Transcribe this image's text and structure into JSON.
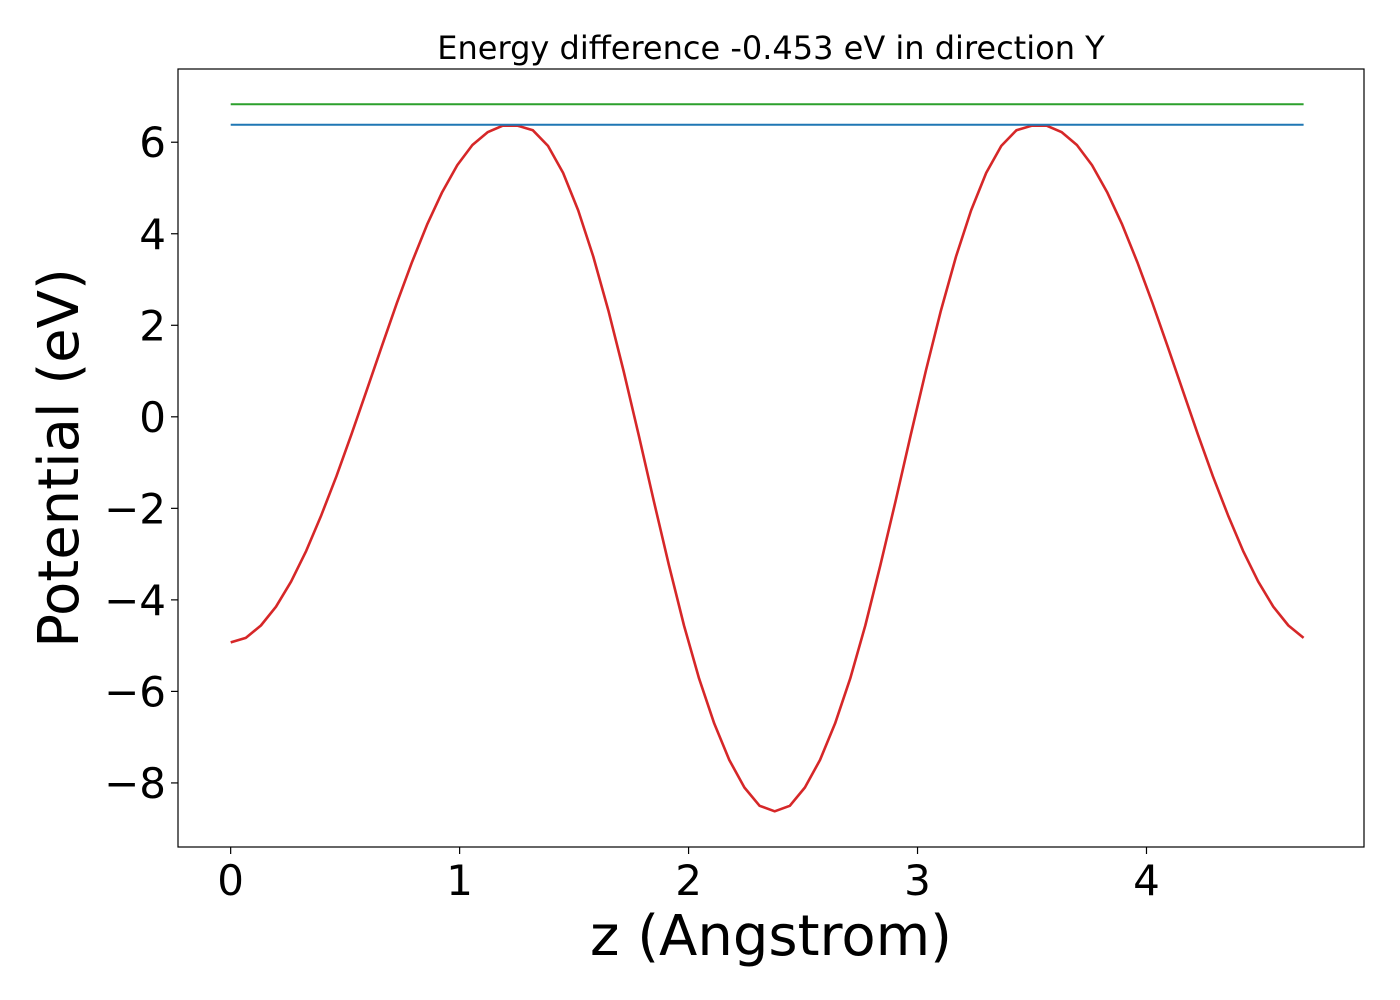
{
  "chart_data": {
    "type": "line",
    "title": "Energy difference -0.453 eV in direction Y",
    "xlabel": "z (Angstrom)",
    "ylabel": "Potential (eV)",
    "xlim": [
      -0.23,
      4.95
    ],
    "ylim": [
      -9.4,
      7.6
    ],
    "xticks": [
      0,
      1,
      2,
      3,
      4
    ],
    "xtick_labels": [
      "0",
      "1",
      "2",
      "3",
      "4"
    ],
    "yticks": [
      -8,
      -6,
      -4,
      -2,
      0,
      2,
      4,
      6
    ],
    "ytick_labels": [
      "−8",
      "−6",
      "−4",
      "−2",
      "0",
      "2",
      "4",
      "6"
    ],
    "grid": false,
    "series": [
      {
        "color": "#d62728",
        "x": [
          0.0,
          0.066,
          0.132,
          0.198,
          0.264,
          0.33,
          0.396,
          0.462,
          0.528,
          0.594,
          0.66,
          0.726,
          0.792,
          0.858,
          0.924,
          0.99,
          1.056,
          1.122,
          1.188,
          1.254,
          1.32,
          1.386,
          1.452,
          1.518,
          1.584,
          1.65,
          1.716,
          1.782,
          1.848,
          1.914,
          1.98,
          2.046,
          2.112,
          2.178,
          2.244,
          2.31,
          2.376,
          2.442,
          2.508,
          2.574,
          2.64,
          2.706,
          2.772,
          2.838,
          2.904,
          2.97,
          3.036,
          3.102,
          3.168,
          3.234,
          3.3,
          3.366,
          3.432,
          3.498,
          3.564,
          3.63,
          3.696,
          3.762,
          3.828,
          3.894,
          3.96,
          4.026,
          4.092,
          4.158,
          4.224,
          4.29,
          4.356,
          4.422,
          4.488,
          4.554,
          4.62,
          4.686
        ],
        "y": [
          -4.93,
          -4.83,
          -4.56,
          -4.15,
          -3.6,
          -2.93,
          -2.15,
          -1.3,
          -0.38,
          0.58,
          1.54,
          2.49,
          3.38,
          4.2,
          4.91,
          5.5,
          5.94,
          6.22,
          6.36,
          6.36,
          6.26,
          5.92,
          5.33,
          4.51,
          3.5,
          2.32,
          1.0,
          -0.4,
          -1.84,
          -3.24,
          -4.56,
          -5.72,
          -6.7,
          -7.5,
          -8.1,
          -8.5,
          -8.62,
          -8.5,
          -8.1,
          -7.5,
          -6.7,
          -5.72,
          -4.56,
          -3.24,
          -1.84,
          -0.4,
          1.0,
          2.32,
          3.5,
          4.51,
          5.33,
          5.92,
          6.26,
          6.36,
          6.36,
          6.22,
          5.94,
          5.5,
          4.91,
          4.2,
          3.38,
          2.49,
          1.54,
          0.58,
          -0.38,
          -1.3,
          -2.15,
          -2.93,
          -3.6,
          -4.15,
          -4.56,
          -4.83
        ]
      },
      {
        "color": "#2ca02c",
        "x": [
          0.0,
          4.686
        ],
        "y": [
          6.83,
          6.83
        ]
      },
      {
        "color": "#1f77b4",
        "x": [
          0.0,
          4.686
        ],
        "y": [
          6.38,
          6.38
        ]
      }
    ]
  }
}
